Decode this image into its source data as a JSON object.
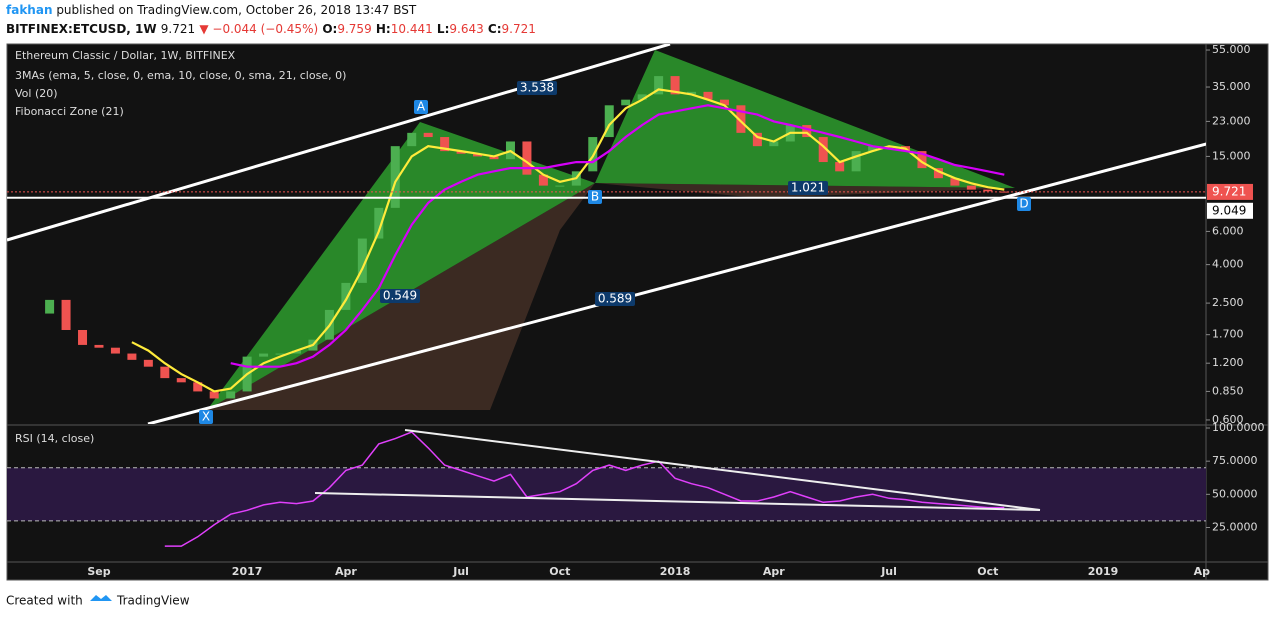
{
  "header": {
    "author": "fakhan",
    "published": "published on TradingView.com, October 26, 2018 13:47 BST",
    "symbol": "BITFINEX:ETCUSD, 1W",
    "last": 9.721,
    "change": "▼ −0.044 (−0.45%)",
    "ohlc": [
      {
        "label": "O:",
        "value": 9.759
      },
      {
        "label": "H:",
        "value": 10.441
      },
      {
        "label": "L:",
        "value": 9.643
      },
      {
        "label": "C:",
        "value": 9.721
      }
    ]
  },
  "chart_data": {
    "type": "candlestick",
    "title": "Ethereum Classic / Dollar, 1W, BITFINEX",
    "log_scale": true,
    "indicators": [
      "3MAs (ema, 5, close, 0, ema, 10, close, 0, sma, 21, close, 0)",
      "Vol (20)",
      "Fibonacci Zone (21)"
    ],
    "up_color": "#4caf50",
    "down_color": "#ef5350",
    "categories": [
      null,
      null,
      null,
      "Sep",
      null,
      null,
      null,
      null,
      null,
      null,
      null,
      null,
      "2017",
      null,
      null,
      null,
      null,
      null,
      "Apr",
      null,
      null,
      null,
      null,
      null,
      null,
      "Jul",
      null,
      null,
      null,
      null,
      null,
      "Oct",
      null,
      null,
      null,
      null,
      null,
      null,
      "2018",
      null,
      null,
      null,
      null,
      null,
      "Apr",
      null,
      null,
      null,
      null,
      null,
      null,
      "Jul",
      null,
      null,
      null,
      null,
      null,
      "Oct",
      null,
      null,
      null,
      null,
      null,
      null,
      "2019",
      null,
      null,
      null,
      null,
      null,
      "Ap"
    ],
    "open": [
      2.2,
      2.6,
      1.8,
      1.5,
      1.45,
      1.35,
      1.25,
      1.15,
      1.0,
      0.95,
      0.85,
      0.78,
      0.85,
      1.3,
      1.35,
      1.35,
      1.4,
      1.6,
      2.3,
      3.2,
      5.5,
      8,
      17,
      20,
      19,
      16,
      15.5,
      15,
      14.5,
      18,
      12,
      10.5,
      10.5,
      12.5,
      19,
      28,
      30,
      32,
      40,
      32,
      33,
      30,
      28,
      20,
      17,
      18,
      22,
      19,
      14,
      12.5,
      16,
      17,
      17,
      16,
      13,
      11.5,
      10.5,
      10,
      9.759,
      null,
      null,
      null,
      null,
      null,
      null,
      null,
      null,
      null,
      null,
      null,
      null
    ],
    "close": [
      2.6,
      1.8,
      1.5,
      1.45,
      1.35,
      1.25,
      1.15,
      1.0,
      0.95,
      0.85,
      0.78,
      0.85,
      1.3,
      1.35,
      1.35,
      1.4,
      1.6,
      2.3,
      3.2,
      5.5,
      8,
      17,
      20,
      19,
      16,
      15.5,
      15,
      14.5,
      18,
      12,
      10.5,
      10.5,
      12.5,
      19,
      28,
      30,
      32,
      40,
      32,
      33,
      30,
      28,
      20,
      17,
      18,
      22,
      19,
      14,
      12.5,
      16,
      17,
      17,
      16,
      13,
      11.5,
      10.5,
      10,
      9.8,
      9.721,
      null,
      null,
      null,
      null,
      null,
      null,
      null,
      null,
      null,
      null,
      null,
      null
    ],
    "moving_averages": [
      {
        "color": "#ffeb3b",
        "values": [
          null,
          null,
          null,
          null,
          null,
          1.55,
          1.4,
          1.2,
          1.05,
          0.95,
          0.85,
          0.88,
          1.05,
          1.2,
          1.3,
          1.4,
          1.5,
          1.9,
          2.6,
          3.8,
          6,
          11,
          15,
          17,
          16.5,
          16,
          15.5,
          15,
          16,
          14,
          12,
          11,
          11.5,
          15,
          22,
          27,
          30,
          34,
          33,
          32,
          30,
          28,
          23,
          19,
          18,
          20,
          20,
          17,
          14,
          15,
          16,
          17,
          16.5,
          14,
          12.5,
          11.5,
          10.8,
          10.3,
          10,
          null,
          null,
          null,
          null,
          null,
          null,
          null,
          null,
          null,
          null,
          null,
          null
        ]
      },
      {
        "color": "#d500f9",
        "values": [
          null,
          null,
          null,
          null,
          null,
          null,
          null,
          null,
          null,
          null,
          null,
          1.2,
          1.15,
          1.15,
          1.15,
          1.2,
          1.3,
          1.5,
          1.8,
          2.3,
          3,
          4.5,
          6.5,
          8.5,
          10,
          11,
          12,
          12.5,
          13,
          13,
          13,
          13.5,
          14,
          14,
          16,
          19,
          22,
          25,
          26,
          27,
          28,
          27,
          26,
          25,
          23,
          22,
          21,
          20,
          19,
          18,
          17,
          16.5,
          16,
          15.5,
          14.5,
          13.5,
          13,
          12.5,
          12,
          null,
          null,
          null,
          null,
          null,
          null,
          null,
          null,
          null,
          null,
          null,
          null
        ]
      }
    ],
    "ylim": [
      0.571,
      59.2
    ],
    "yticks": [
      {
        "value": 55,
        "label": "55.000"
      },
      {
        "value": 35,
        "label": "35.000"
      },
      {
        "value": 23,
        "label": "23.000"
      },
      {
        "value": 15,
        "label": "15.000"
      },
      {
        "value": 6,
        "label": "6.000"
      },
      {
        "value": 4,
        "label": "4.000"
      },
      {
        "value": 2.5,
        "label": "2.500"
      },
      {
        "value": 1.7,
        "label": "1.700"
      },
      {
        "value": 1.2,
        "label": "1.200"
      },
      {
        "value": 0.85,
        "label": "0.850"
      },
      {
        "value": 0.6,
        "label": "0.600"
      }
    ],
    "last_price": 9.721,
    "ref_price": 9.049,
    "annotations": [
      "A",
      "B",
      "X",
      "D",
      "3.538",
      "1.021",
      "0.549",
      "0.589"
    ],
    "rsi": {
      "title": "RSI (14, close)",
      "color": "#e040fb",
      "band_color": "#2a1840",
      "values": [
        null,
        null,
        null,
        null,
        null,
        null,
        null,
        11,
        11,
        18,
        27,
        35,
        38,
        42,
        44,
        43,
        45,
        55,
        68,
        72,
        88,
        92,
        97,
        85,
        72,
        68,
        64,
        60,
        65,
        48,
        50,
        52,
        58,
        68,
        72,
        68,
        72,
        75,
        62,
        58,
        55,
        50,
        45,
        45,
        48,
        52,
        48,
        44,
        45,
        48,
        50,
        47,
        46,
        44,
        43,
        42,
        41,
        40,
        40,
        null,
        null,
        null,
        null,
        null,
        null,
        null,
        null,
        null,
        null,
        null,
        null
      ],
      "ylim": [
        -1,
        101.5
      ],
      "bands": [
        30,
        70
      ],
      "yticks": [
        {
          "value": 100,
          "label": "100.0000"
        },
        {
          "value": 75,
          "label": "75.0000"
        },
        {
          "value": 50,
          "label": "50.0000"
        },
        {
          "value": 25,
          "label": "25.0000"
        }
      ]
    }
  },
  "footer": {
    "created": "Created with",
    "brand": "TradingView"
  }
}
